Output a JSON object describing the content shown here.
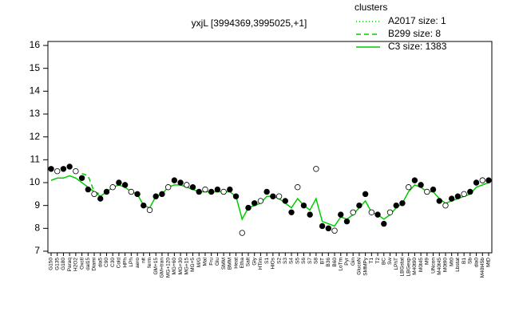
{
  "chart_data": {
    "type": "scatter-line",
    "title": "yxjL [3994369,3995025,+1]",
    "legend_title": "clusters",
    "legend_position": "top-right",
    "categories": [
      "G150",
      "G135",
      "G180",
      "Paraq",
      "H2O2",
      "Oxctl",
      "dal15",
      "Diami",
      "dia5",
      "C90",
      "C30",
      "Cold",
      "HPh",
      "LPh",
      "aero",
      "nit",
      "ferm",
      "GM+15",
      "GM+tran",
      "MG+120",
      "MG+60",
      "MG+30",
      "MG+15",
      "MG+5",
      "M/G",
      "Mal",
      "Fru",
      "Glu",
      "SMM",
      "BMM",
      "Heat",
      "Etha",
      "Salt",
      "Gly",
      "HTim",
      "S1",
      "HiOs",
      "S2",
      "S3",
      "S4",
      "S5",
      "S6",
      "S7",
      "S8",
      "BT",
      "B36",
      "B60",
      "LoTm",
      "Pyr",
      "Gin",
      "GlucoN",
      "SMMPy",
      "T1",
      "T2",
      "BC",
      "Sw",
      "LPhT",
      "LBGstat",
      "LBGexp",
      "M40t90",
      "M0t45",
      "M9",
      "UNcon",
      "M40t45",
      "M0t90",
      "Mt0",
      "Lbstat",
      "B1",
      "Sb",
      "dia0",
      "M40t45b",
      "MtD"
    ],
    "points": [
      10.6,
      10.5,
      10.6,
      10.7,
      10.5,
      10.2,
      9.7,
      9.5,
      9.3,
      9.6,
      9.8,
      10.0,
      9.9,
      9.6,
      9.5,
      9.0,
      8.8,
      9.4,
      9.5,
      9.8,
      10.1,
      10.0,
      9.9,
      9.8,
      9.6,
      9.7,
      9.6,
      9.7,
      9.6,
      9.7,
      9.4,
      7.8,
      8.9,
      9.1,
      9.2,
      9.6,
      9.4,
      9.4,
      9.2,
      8.7,
      9.8,
      9.0,
      8.6,
      10.6,
      8.1,
      8.0,
      7.9,
      8.6,
      8.3,
      8.7,
      9.0,
      9.5,
      8.7,
      8.6,
      8.2,
      8.7,
      9.0,
      9.1,
      9.8,
      10.1,
      9.9,
      9.6,
      9.7,
      9.2,
      9.0,
      9.3,
      9.4,
      9.5,
      9.6,
      10.0,
      10.1,
      10.1
    ],
    "series": [
      {
        "name": "A2017 size: 1",
        "color": "#00cc00",
        "dash": "dotted"
      },
      {
        "name": "B299 size: 8",
        "color": "#00cc00",
        "dash": "dashed",
        "values": [
          null,
          null,
          null,
          null,
          null,
          10.4,
          10.3,
          9.6,
          9.5,
          null,
          null,
          null,
          null,
          null,
          null,
          null,
          null,
          null,
          null,
          null,
          null,
          null,
          null,
          null,
          null,
          null,
          null,
          null,
          null,
          null,
          null,
          null,
          null,
          null,
          null,
          null,
          null,
          null,
          null,
          null,
          null,
          null,
          null,
          null,
          null,
          null,
          null,
          null,
          null,
          null,
          null,
          null,
          null,
          null,
          null,
          null,
          null,
          null,
          null,
          null,
          null,
          null,
          null,
          null,
          null,
          null,
          null,
          null,
          null,
          null,
          null,
          null
        ]
      },
      {
        "name": "C3 size: 1383",
        "color": "#00cc00",
        "dash": "solid",
        "values": [
          10.1,
          10.2,
          10.2,
          10.3,
          10.2,
          10.0,
          9.8,
          9.6,
          9.4,
          9.6,
          9.8,
          9.9,
          9.8,
          9.6,
          9.5,
          9.0,
          8.9,
          9.4,
          9.5,
          9.8,
          9.9,
          9.9,
          9.8,
          9.7,
          9.6,
          9.6,
          9.6,
          9.6,
          9.6,
          9.6,
          9.4,
          8.4,
          8.9,
          9.0,
          9.1,
          9.4,
          9.4,
          9.3,
          9.1,
          8.9,
          9.3,
          9.0,
          8.8,
          9.3,
          8.3,
          8.2,
          8.1,
          8.5,
          8.4,
          8.6,
          8.9,
          9.2,
          8.7,
          8.6,
          8.4,
          8.6,
          8.9,
          9.1,
          9.6,
          9.9,
          9.8,
          9.6,
          9.6,
          9.3,
          9.1,
          9.2,
          9.3,
          9.4,
          9.5,
          9.8,
          9.9,
          10.0
        ]
      }
    ],
    "point_color": "#000000",
    "ylim": [
      7,
      16
    ],
    "yticks": [
      7,
      8,
      9,
      10,
      11,
      12,
      13,
      14,
      15,
      16
    ]
  }
}
